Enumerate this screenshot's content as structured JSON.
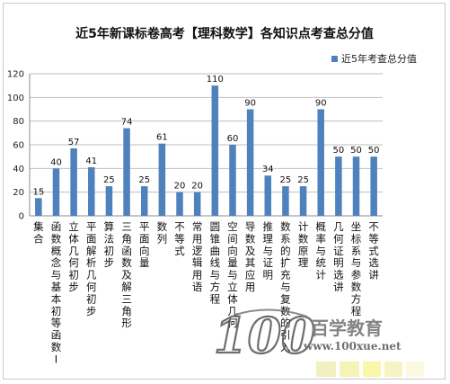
{
  "chart_data": {
    "type": "bar",
    "title": "近5年新课标卷高考【理科数学】各知识点考查总分值",
    "xlabel": "",
    "ylabel": "",
    "ylim": [
      0,
      120
    ],
    "yticks": [
      0,
      20,
      40,
      60,
      80,
      100,
      120
    ],
    "grid": true,
    "legend_position": "top-right",
    "bar_color": "#4f81bd",
    "categories": [
      "集合",
      "函数概念与基本初等函数Ⅰ",
      "立体几何初步",
      "平面解析几何初步",
      "算法初步",
      "三角函数及解三角形",
      "平面向量",
      "数列",
      "不等式",
      "常用逻辑用语",
      "圆锥曲线与方程",
      "空间向量与立体几何",
      "导数及其应用",
      "推理与证明",
      "数系的扩充与复数的引入",
      "计数原理",
      "概率与统计",
      "几何证明选讲",
      "坐标系与参数方程",
      "不等式选讲"
    ],
    "series": [
      {
        "name": "近5年考查总分值",
        "values": [
          15,
          40,
          57,
          41,
          25,
          74,
          25,
          61,
          20,
          20,
          110,
          60,
          90,
          34,
          25,
          25,
          90,
          50,
          50,
          50
        ]
      }
    ]
  },
  "watermark": {
    "brand_digits": "100",
    "brand_text": "百学教育",
    "url": "www.100xue.net"
  }
}
